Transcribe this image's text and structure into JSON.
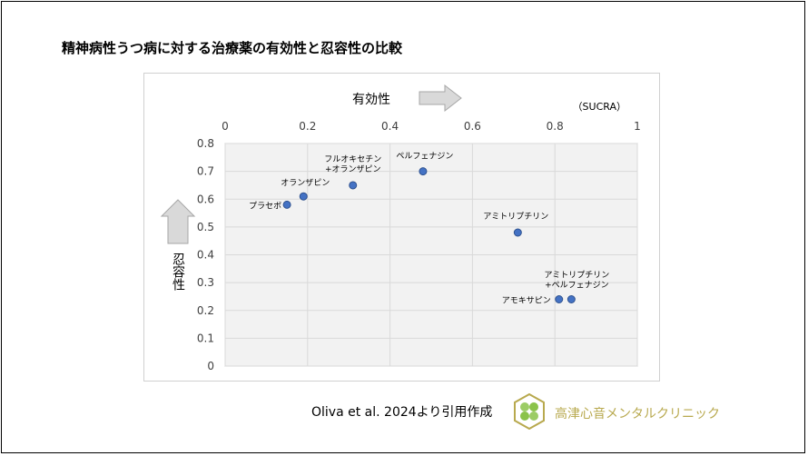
{
  "title": "精神病性うつ病に対する治療薬の有効性と忍容性の比較",
  "citation": "Oliva et al. 2024より引用作成",
  "clinic_name": "高津心音メンタルクリニック",
  "colors": {
    "point": "#4472c4",
    "point_edge": "#2f528f",
    "plot_bg": "#f2f2f2",
    "grid": "#d9d9d9",
    "arrow": "#d9d9d9",
    "clinic": "#b8a94e"
  },
  "chart_data": {
    "type": "scatter",
    "xlabel": "有効性",
    "ylabel": "忍容性",
    "unit_label": "（SUCRA）",
    "xlim": [
      0,
      1
    ],
    "ylim": [
      0,
      0.8
    ],
    "x_ticks": [
      "0",
      "0.2",
      "0.4",
      "0.6",
      "0.8",
      "1"
    ],
    "y_ticks": [
      "0",
      "0.1",
      "0.2",
      "0.3",
      "0.4",
      "0.5",
      "0.6",
      "0.7",
      "0.8"
    ],
    "x_axis_position": "top",
    "grid": true,
    "points": [
      {
        "label": "プラセボ",
        "x": 0.15,
        "y": 0.58
      },
      {
        "label": "オランザピン",
        "x": 0.19,
        "y": 0.61
      },
      {
        "label": "フルオキセチン\n+オランザピン",
        "x": 0.31,
        "y": 0.65
      },
      {
        "label": "ペルフェナジン",
        "x": 0.48,
        "y": 0.7
      },
      {
        "label": "アミトリプチリン",
        "x": 0.71,
        "y": 0.48
      },
      {
        "label": "アモキサピン",
        "x": 0.81,
        "y": 0.24
      },
      {
        "label": "アミトリプチリン\n+ペルフェナジン",
        "x": 0.84,
        "y": 0.24
      }
    ]
  }
}
